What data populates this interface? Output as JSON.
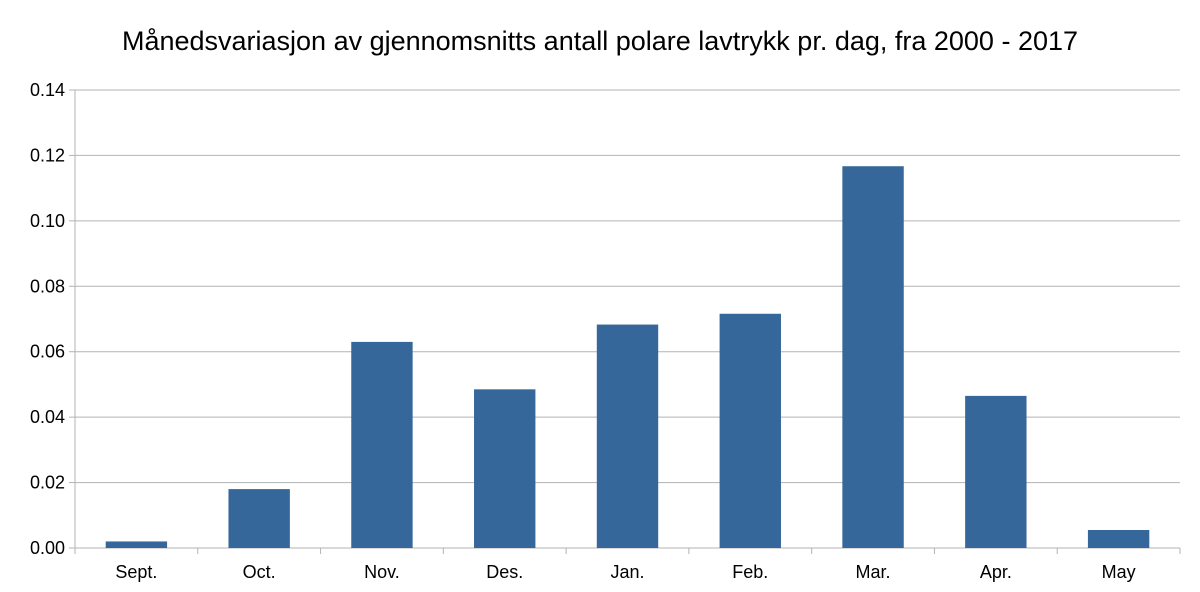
{
  "chart_data": {
    "type": "bar",
    "title": "Månedsvariasjon av gjennomsnitts antall polare lavtrykk pr. dag, fra 2000 - 2017",
    "xlabel": "",
    "ylabel": "",
    "categories": [
      "Sept.",
      "Oct.",
      "Nov.",
      "Des.",
      "Jan.",
      "Feb.",
      "Mar.",
      "Apr.",
      "May"
    ],
    "values": [
      0.002,
      0.018,
      0.063,
      0.0485,
      0.0683,
      0.0716,
      0.1167,
      0.0465,
      0.0055
    ],
    "ylim": [
      0,
      0.14
    ],
    "yticks": [
      "0.00",
      "0.02",
      "0.04",
      "0.06",
      "0.08",
      "0.10",
      "0.12",
      "0.14"
    ],
    "grid": true,
    "bar_color": "#36679a",
    "grid_color": "#b3b3b3"
  }
}
